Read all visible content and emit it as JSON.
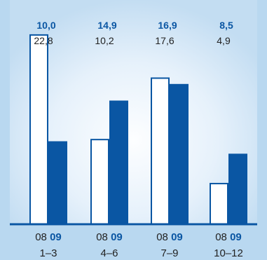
{
  "colors": {
    "background": "#b9d8f0",
    "panel_center": "#fdfeff",
    "panel_edge": "#c3ddf2",
    "series_2008": "#ffffff",
    "series_2009": "#0a56a3",
    "bar_stroke": "#0a56a3",
    "axis": "#0a56a3",
    "text_dark": "#222222",
    "text_accent": "#0a56a3"
  },
  "chart_data": {
    "type": "bar",
    "categories": [
      "1–3",
      "4–6",
      "7–9",
      "10–12"
    ],
    "series": [
      {
        "name": "08",
        "values": [
          22.8,
          10.2,
          17.6,
          4.9
        ],
        "labels": [
          "22,8",
          "10,2",
          "17,6",
          "4,9"
        ]
      },
      {
        "name": "09",
        "values": [
          10.0,
          14.9,
          16.9,
          8.5
        ],
        "labels": [
          "10,0",
          "14,9",
          "16,9",
          "8,5"
        ]
      }
    ],
    "ylim": [
      0,
      26
    ],
    "grid": false,
    "legend": "per-group year labels beneath each bar pair"
  }
}
